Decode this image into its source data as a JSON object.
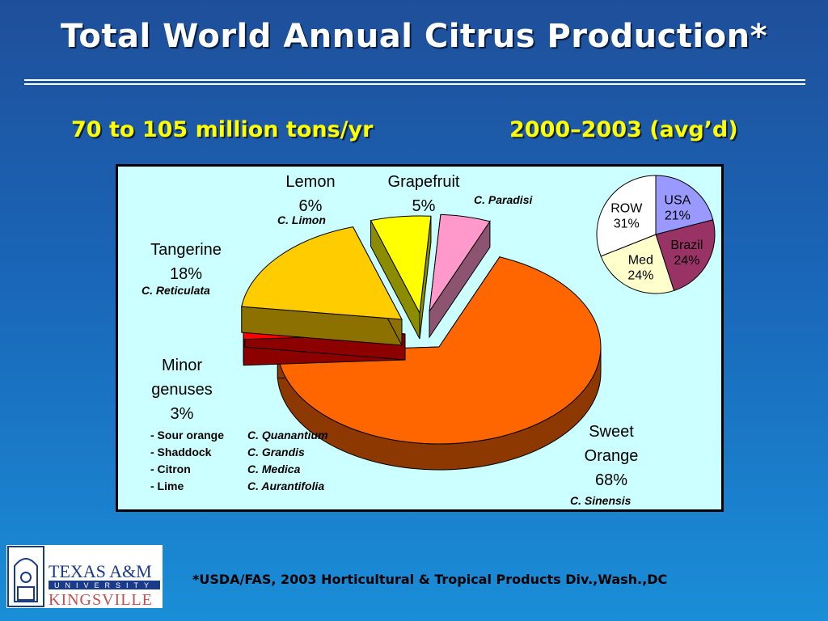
{
  "slide": {
    "title": "Total World Annual Citrus Production*",
    "subtitle_left": "70 to 105 million tons/yr",
    "subtitle_right": "2000–2003 (avg’d)",
    "footnote": "*USDA/FAS, 2003 Horticultural & Tropical Products Div.,Wash.,DC",
    "logo": {
      "line1": "TEXAS A&M",
      "line2": "UNIVERSITY",
      "line3": "KINGSVILLE"
    }
  },
  "chart_data": [
    {
      "type": "pie",
      "title": "",
      "slices": [
        {
          "name": "Sweet Orange",
          "value": 68,
          "value_label": "68%",
          "scientific": "C. Sinensis",
          "color": "#ff6600"
        },
        {
          "name": "Minor genuses",
          "value": 3,
          "value_label": "3%",
          "scientific": "",
          "color": "#ff0000"
        },
        {
          "name": "Tangerine",
          "value": 18,
          "value_label": "18%",
          "scientific": "C. Reticulata",
          "color": "#ffcc00"
        },
        {
          "name": "Lemon",
          "value": 6,
          "value_label": "6%",
          "scientific": "C. Limon",
          "color": "#ffff00"
        },
        {
          "name": "Grapefruit",
          "value": 5,
          "value_label": "5%",
          "scientific": "C. Paradisi",
          "color": "#ff99cc"
        }
      ],
      "minor_genuses": [
        {
          "name": "- Sour orange",
          "scientific": "C. Quanantium"
        },
        {
          "name": "- Shaddock",
          "scientific": "C. Grandis"
        },
        {
          "name": "- Citron",
          "scientific": "C. Medica"
        },
        {
          "name": "- Lime",
          "scientific": "C. Aurantifolia"
        }
      ]
    },
    {
      "type": "pie",
      "title": "",
      "slices": [
        {
          "name": "USA",
          "value": 21,
          "value_label": "21%",
          "color": "#9999ff"
        },
        {
          "name": "Brazil",
          "value": 24,
          "value_label": "24%",
          "color": "#993366"
        },
        {
          "name": "Med",
          "value": 24,
          "value_label": "24%",
          "color": "#ffffcc"
        },
        {
          "name": "ROW",
          "value": 31,
          "value_label": "31%",
          "color": "#ffffff"
        }
      ]
    }
  ]
}
